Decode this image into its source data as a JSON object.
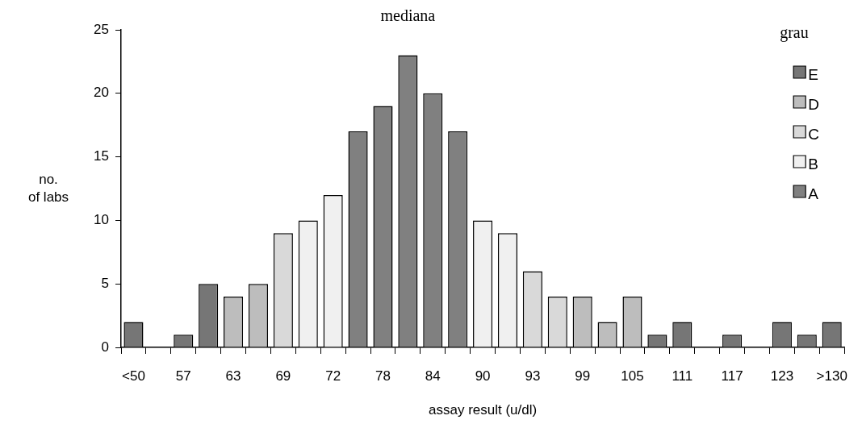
{
  "chart_data": {
    "type": "bar",
    "annotations": [
      "mediana"
    ],
    "xlabel": "assay result (u/dl)",
    "ylabel": "no.\nof labs",
    "legend_title": "grau",
    "legend": "top right",
    "stacked": true,
    "grid": false,
    "categories": [
      "<50",
      null,
      "57",
      null,
      "63",
      null,
      "69",
      null,
      "72",
      null,
      "78",
      null,
      "84",
      null,
      "90",
      null,
      "93",
      null,
      "99",
      null,
      "105",
      null,
      "111",
      null,
      "117",
      null,
      "123",
      null,
      ">130"
    ],
    "ylim": [
      0,
      25
    ],
    "yticks": [
      0,
      5,
      10,
      15,
      20,
      25
    ],
    "series": [
      {
        "name": "E",
        "color": "#767676",
        "values": [
          2,
          null,
          1,
          5,
          null,
          null,
          null,
          null,
          null,
          null,
          null,
          null,
          null,
          null,
          null,
          null,
          null,
          null,
          null,
          null,
          null,
          1,
          2,
          null,
          1,
          null,
          2,
          1,
          2
        ]
      },
      {
        "name": "D",
        "color": "#bdbdbd",
        "values": [
          null,
          null,
          null,
          null,
          4,
          5,
          null,
          null,
          null,
          null,
          null,
          null,
          null,
          null,
          null,
          null,
          null,
          null,
          4,
          2,
          4,
          null,
          null,
          null,
          null,
          null,
          null,
          null,
          null
        ]
      },
      {
        "name": "C",
        "color": "#d9d9d9",
        "values": [
          null,
          null,
          null,
          null,
          null,
          null,
          9,
          null,
          null,
          null,
          null,
          null,
          null,
          null,
          null,
          null,
          6,
          4,
          null,
          null,
          null,
          null,
          null,
          null,
          null,
          null,
          null,
          null,
          null
        ]
      },
      {
        "name": "B",
        "color": "#f0f0f0",
        "values": [
          null,
          null,
          null,
          null,
          null,
          null,
          null,
          10,
          12,
          null,
          null,
          null,
          null,
          null,
          10,
          9,
          null,
          null,
          null,
          null,
          null,
          null,
          null,
          null,
          null,
          null,
          null,
          null,
          null
        ]
      },
      {
        "name": "A",
        "color": "#808080",
        "values": [
          null,
          null,
          null,
          null,
          null,
          null,
          null,
          null,
          null,
          17,
          19,
          23,
          20,
          17,
          null,
          null,
          null,
          null,
          null,
          null,
          null,
          null,
          null,
          null,
          null,
          null,
          null,
          null,
          null
        ]
      }
    ]
  }
}
